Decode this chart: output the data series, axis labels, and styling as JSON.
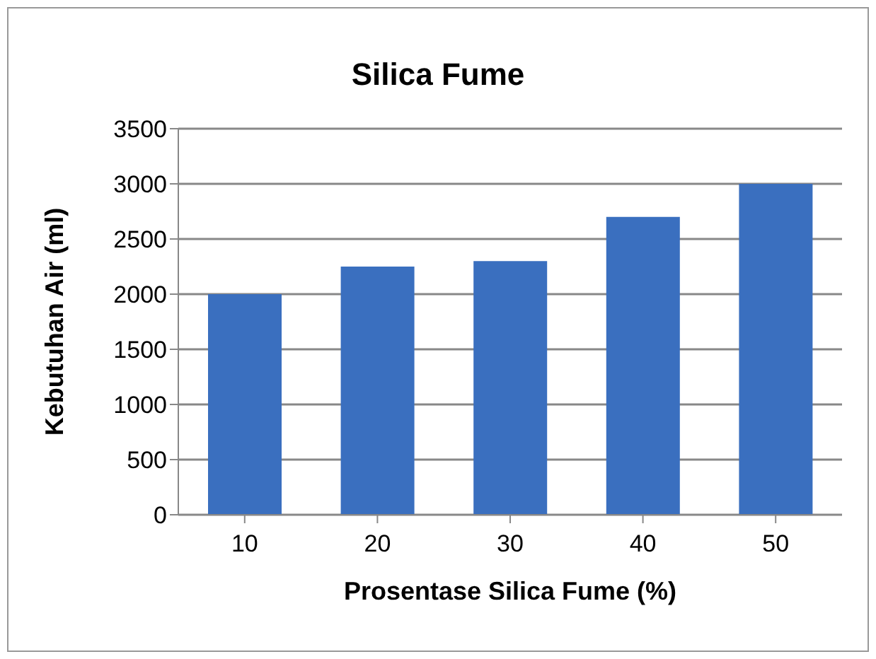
{
  "chart_data": {
    "type": "bar",
    "title": "Silica Fume",
    "xlabel": "Prosentase Silica Fume (%)",
    "ylabel": "Kebutuhan Air (ml)",
    "categories": [
      "10",
      "20",
      "30",
      "40",
      "50"
    ],
    "values": [
      2000,
      2250,
      2300,
      2700,
      3000
    ],
    "color": "#3a6fbf",
    "ylim": [
      0,
      3500
    ],
    "yticks": [
      0,
      500,
      1000,
      1500,
      2000,
      2500,
      3000,
      3500
    ],
    "grid": "y",
    "legend": false
  }
}
